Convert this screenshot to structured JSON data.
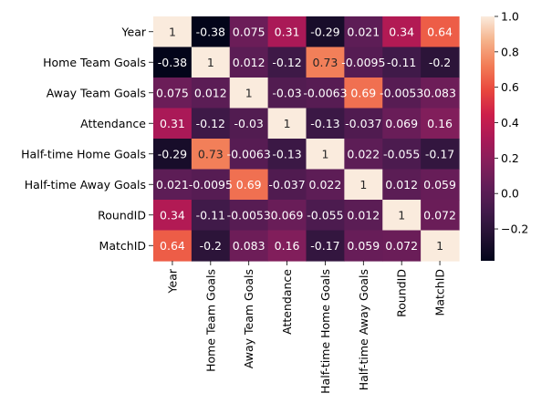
{
  "chart_data": {
    "type": "heatmap",
    "colormap": "rocket",
    "rows": [
      "Year",
      "Home Team Goals",
      "Away Team Goals",
      "Attendance",
      "Half-time Home Goals",
      "Half-time Away Goals",
      "RoundID",
      "MatchID"
    ],
    "columns": [
      "Year",
      "Home Team Goals",
      "Away Team Goals",
      "Attendance",
      "Half-time Home Goals",
      "Half-time Away Goals",
      "RoundID",
      "MatchID"
    ],
    "values": [
      [
        1,
        -0.38,
        0.075,
        0.31,
        -0.29,
        0.021,
        0.34,
        0.64
      ],
      [
        -0.38,
        1,
        0.012,
        -0.12,
        0.73,
        -0.0095,
        -0.11,
        -0.2
      ],
      [
        0.075,
        0.012,
        1,
        -0.03,
        -0.0063,
        0.69,
        -0.0053,
        0.083
      ],
      [
        0.31,
        -0.12,
        -0.03,
        1,
        -0.13,
        -0.037,
        0.069,
        0.16
      ],
      [
        -0.29,
        0.73,
        -0.0063,
        -0.13,
        1,
        0.022,
        -0.055,
        -0.17
      ],
      [
        0.021,
        -0.0095,
        0.69,
        -0.037,
        0.022,
        1,
        0.012,
        0.059
      ],
      [
        0.34,
        -0.11,
        -0.0053,
        0.069,
        -0.055,
        0.012,
        1,
        0.072
      ],
      [
        0.64,
        -0.2,
        0.083,
        0.16,
        -0.17,
        0.059,
        0.072,
        1
      ]
    ],
    "labels": [
      [
        "1",
        "-0.38",
        "0.075",
        "0.31",
        "-0.29",
        "0.021",
        "0.34",
        "0.64"
      ],
      [
        "-0.38",
        "1",
        "0.012",
        "-0.12",
        "0.73",
        "-0.0095",
        "-0.11",
        "-0.2"
      ],
      [
        "0.075",
        "0.012",
        "1",
        "-0.03",
        "-0.0063",
        "0.69",
        "-0.0053",
        "0.083"
      ],
      [
        "0.31",
        "-0.12",
        "-0.03",
        "1",
        "-0.13",
        "-0.037",
        "0.069",
        "0.16"
      ],
      [
        "-0.29",
        "0.73",
        "-0.0063",
        "-0.13",
        "1",
        "0.022",
        "-0.055",
        "-0.17"
      ],
      [
        "0.021",
        "-0.0095",
        "0.69",
        "-0.037",
        "0.022",
        "1",
        "0.012",
        "0.059"
      ],
      [
        "0.34",
        "-0.11",
        "-0.0053",
        "0.069",
        "-0.055",
        "0.012",
        "1",
        "0.072"
      ],
      [
        "0.64",
        "-0.2",
        "0.083",
        "0.16",
        "-0.17",
        "0.059",
        "0.072",
        "1"
      ]
    ],
    "colorbar": {
      "range": [
        -0.38,
        1
      ],
      "ticks": [
        1.0,
        0.8,
        0.6,
        0.4,
        0.2,
        0.0,
        -0.2
      ],
      "tick_labels": [
        "1.0",
        "0.8",
        "0.6",
        "0.4",
        "0.2",
        "0.0",
        "−0.2"
      ]
    }
  }
}
